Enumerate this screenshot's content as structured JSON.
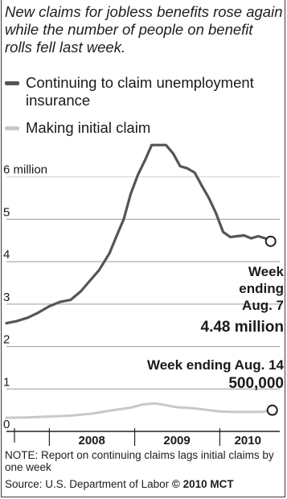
{
  "chart_data": {
    "type": "line",
    "title": "",
    "subtitle": "New claims for jobless benefits rose again while the number of people on benefit rolls fell last week.",
    "y_tick_labels": [
      "0",
      "1",
      "2",
      "3",
      "4",
      "5",
      "6 million"
    ],
    "y_ticks": [
      0,
      1,
      2,
      3,
      4,
      5,
      6
    ],
    "ylim": [
      0,
      7
    ],
    "x_tick_labels": [
      "2008",
      "2009",
      "2010"
    ],
    "xlim": [
      "2007-07-01",
      "2010-09-15"
    ],
    "grid": true,
    "legend_position": "top",
    "series": [
      {
        "name": "Continuing to claim unemployment insurance",
        "color": "#555555",
        "points": [
          [
            "2007-07-01",
            2.55
          ],
          [
            "2007-08-15",
            2.6
          ],
          [
            "2007-10-01",
            2.68
          ],
          [
            "2007-11-15",
            2.8
          ],
          [
            "2008-01-01",
            2.95
          ],
          [
            "2008-02-15",
            3.05
          ],
          [
            "2008-04-01",
            3.1
          ],
          [
            "2008-05-15",
            3.3
          ],
          [
            "2008-06-15",
            3.5
          ],
          [
            "2008-08-01",
            3.8
          ],
          [
            "2008-09-15",
            4.2
          ],
          [
            "2008-10-15",
            4.6
          ],
          [
            "2008-11-15",
            5.0
          ],
          [
            "2008-12-15",
            5.6
          ],
          [
            "2009-01-15",
            6.05
          ],
          [
            "2009-02-15",
            6.4
          ],
          [
            "2009-03-15",
            6.75
          ],
          [
            "2009-04-15",
            6.75
          ],
          [
            "2009-05-15",
            6.75
          ],
          [
            "2009-06-15",
            6.55
          ],
          [
            "2009-07-15",
            6.25
          ],
          [
            "2009-08-15",
            6.2
          ],
          [
            "2009-09-15",
            6.1
          ],
          [
            "2009-10-15",
            5.8
          ],
          [
            "2009-11-15",
            5.5
          ],
          [
            "2009-12-15",
            5.15
          ],
          [
            "2010-01-15",
            4.7
          ],
          [
            "2010-02-15",
            4.58
          ],
          [
            "2010-03-15",
            4.6
          ],
          [
            "2010-04-15",
            4.62
          ],
          [
            "2010-05-15",
            4.55
          ],
          [
            "2010-06-15",
            4.6
          ],
          [
            "2010-07-15",
            4.55
          ],
          [
            "2010-08-07",
            4.48
          ]
        ]
      },
      {
        "name": "Making initial claim",
        "color": "#c8c8c8",
        "points": [
          [
            "2007-07-01",
            0.32
          ],
          [
            "2007-10-01",
            0.33
          ],
          [
            "2008-01-01",
            0.35
          ],
          [
            "2008-04-01",
            0.37
          ],
          [
            "2008-07-01",
            0.42
          ],
          [
            "2008-10-01",
            0.5
          ],
          [
            "2008-12-15",
            0.56
          ],
          [
            "2009-02-01",
            0.63
          ],
          [
            "2009-03-25",
            0.66
          ],
          [
            "2009-05-01",
            0.63
          ],
          [
            "2009-07-01",
            0.57
          ],
          [
            "2009-09-01",
            0.55
          ],
          [
            "2009-11-01",
            0.51
          ],
          [
            "2010-01-01",
            0.47
          ],
          [
            "2010-03-01",
            0.46
          ],
          [
            "2010-05-01",
            0.46
          ],
          [
            "2010-07-01",
            0.46
          ],
          [
            "2010-08-14",
            0.5
          ]
        ]
      }
    ],
    "annotations": [
      {
        "lines": [
          "Week",
          "ending",
          "Aug. 7"
        ],
        "value": "4.48 million",
        "date": "2010-08-07",
        "y": 4.48
      },
      {
        "lines": [
          "Week ending Aug. 14"
        ],
        "value": "500,000",
        "date": "2010-08-14",
        "y": 0.5
      }
    ]
  },
  "legend": [
    {
      "label": "Continuing to claim unemployment insurance",
      "color": "#555555"
    },
    {
      "label": "Making initial claim",
      "color": "#c8c8c8"
    }
  ],
  "note": "NOTE: Report on continuing claims lags initial claims by one week",
  "source": "Source: U.S. Department of Labor",
  "credit": "© 2010 MCT"
}
